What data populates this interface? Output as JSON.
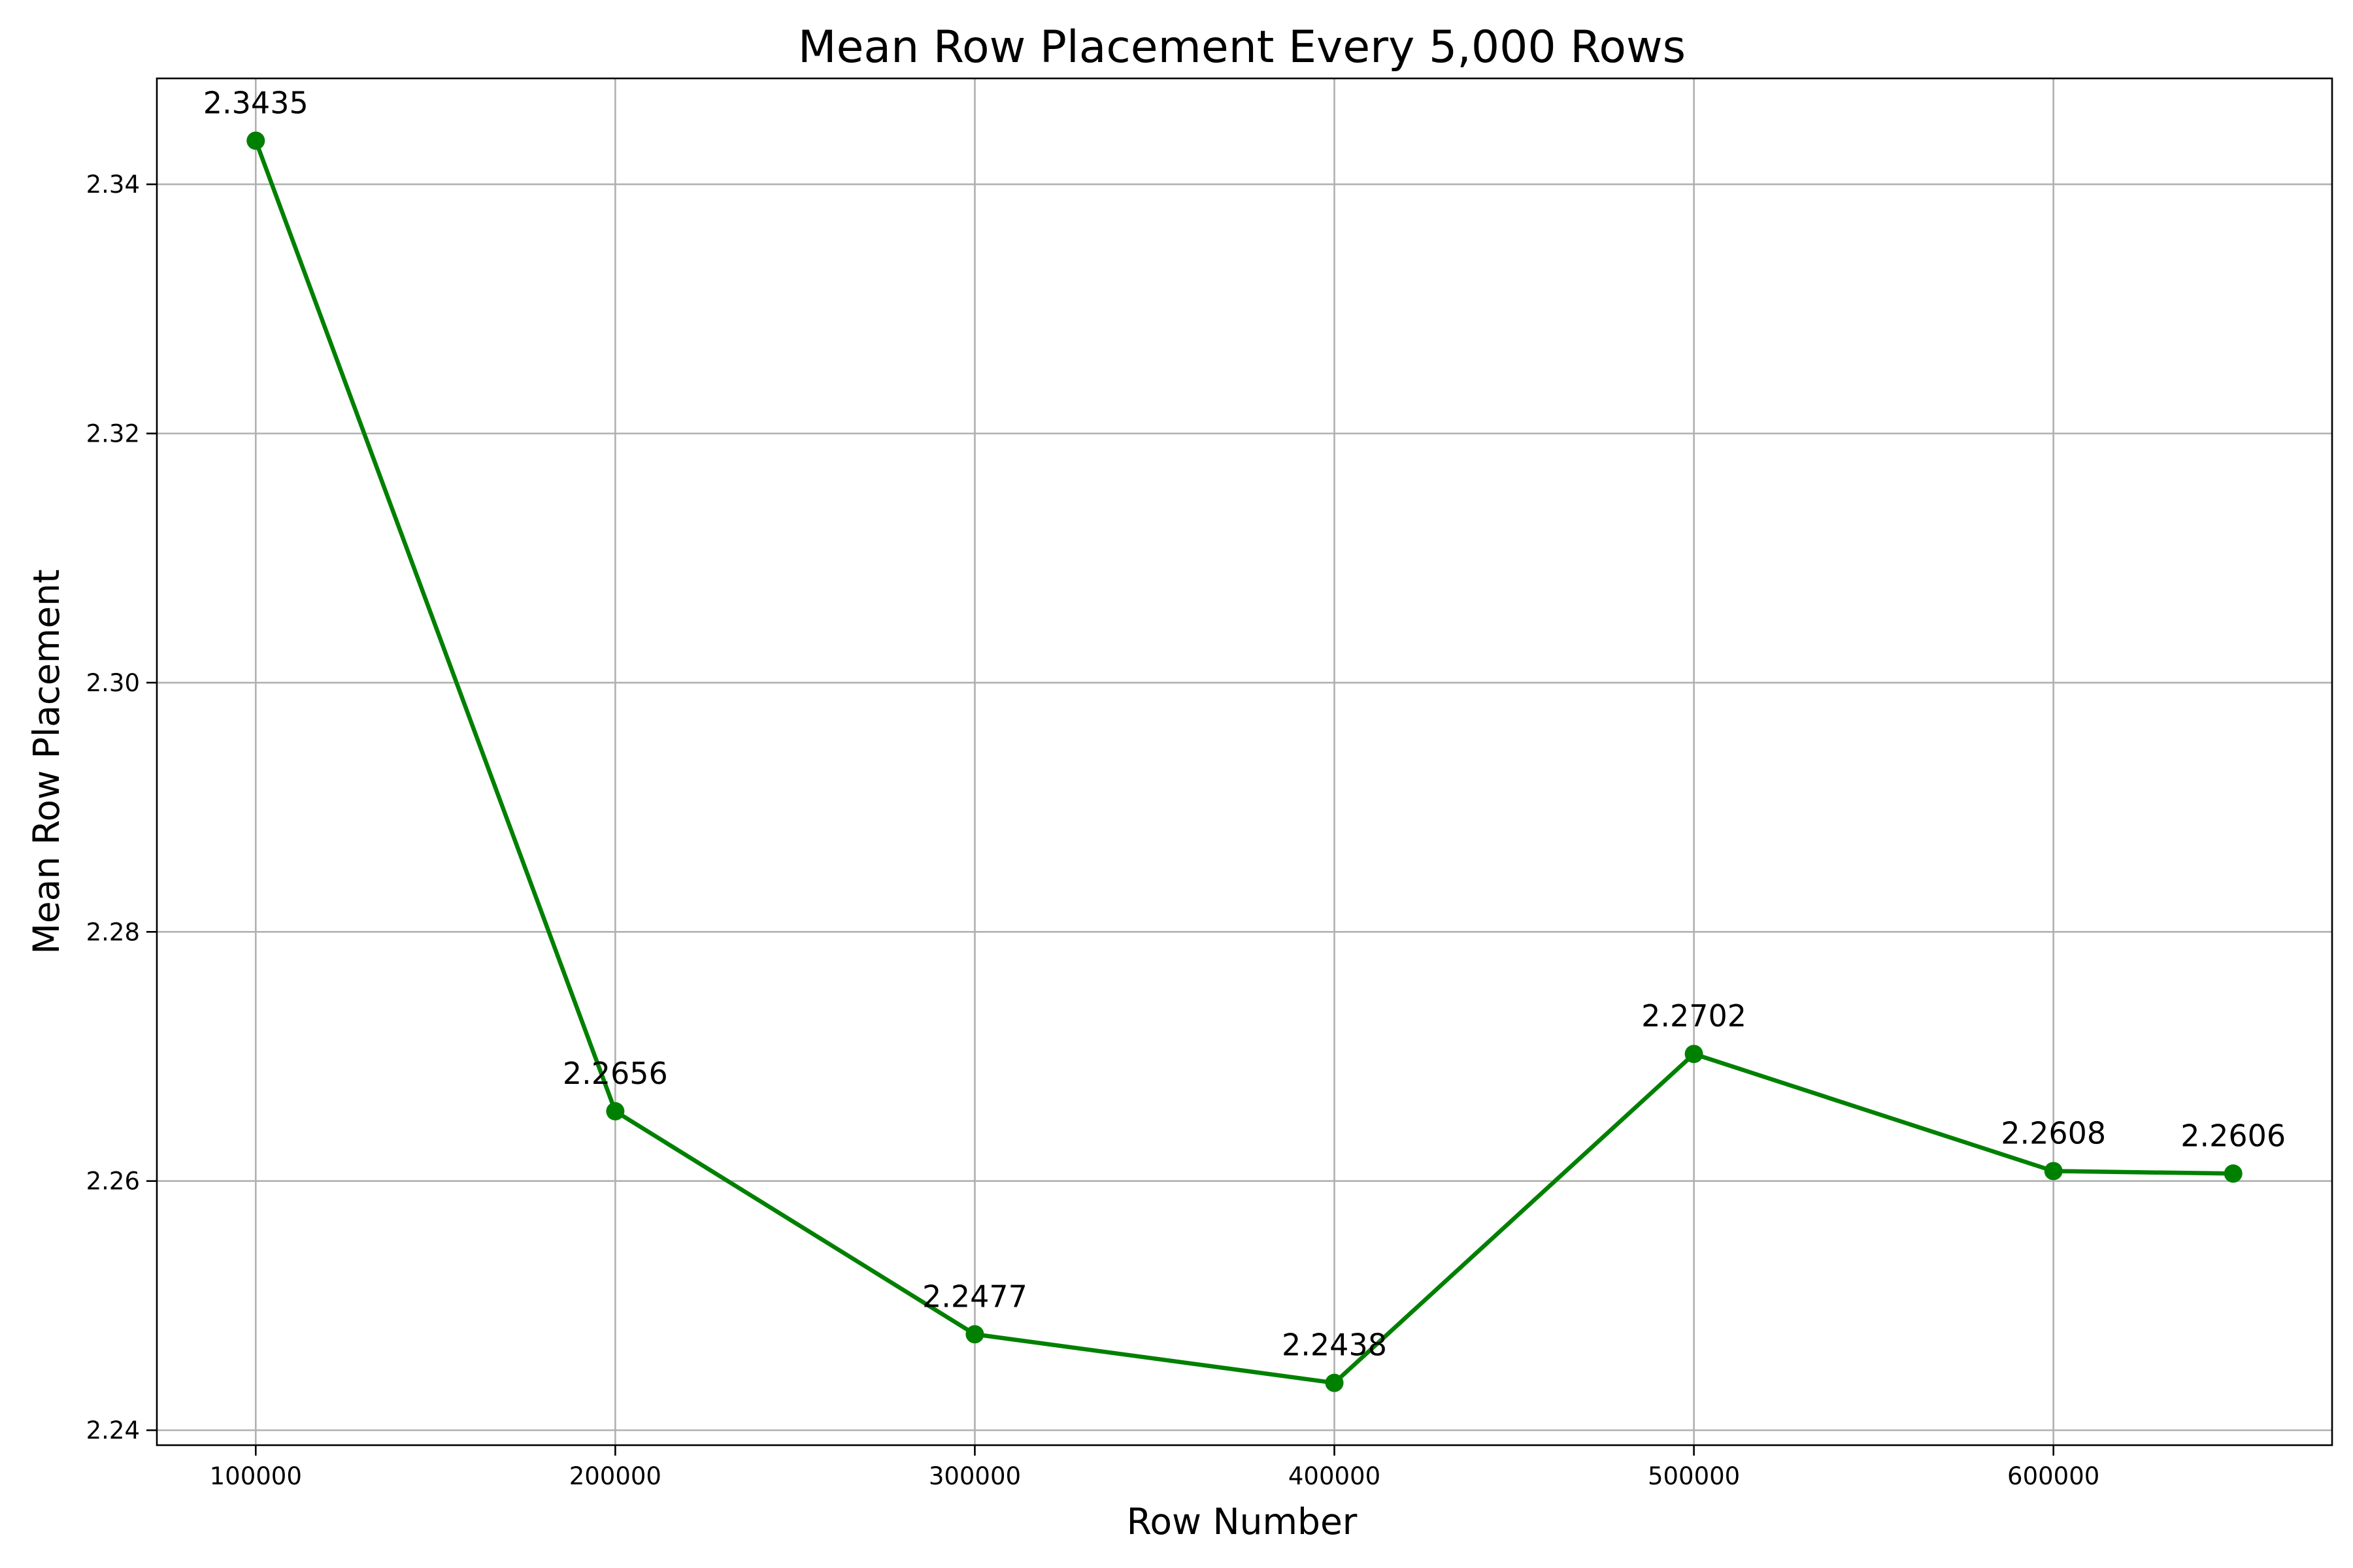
{
  "chart_data": {
    "type": "line",
    "title": "Mean Row Placement Every 5,000 Rows",
    "xlabel": "Row Number",
    "ylabel": "Mean Row Placement",
    "x": [
      100000,
      200000,
      300000,
      400000,
      500000,
      600000,
      650000
    ],
    "series": [
      {
        "values": [
          2.3435,
          2.2656,
          2.2477,
          2.2438,
          2.2702,
          2.2608,
          2.2606
        ],
        "color": "#008000",
        "marker": "circle"
      }
    ],
    "data_labels": [
      "2.3435",
      "2.2656",
      "2.2477",
      "2.2438",
      "2.2702",
      "2.2608",
      "2.2606"
    ],
    "x_ticks": [
      100000,
      200000,
      300000,
      400000,
      500000,
      600000
    ],
    "x_tick_labels": [
      "100000",
      "200000",
      "300000",
      "400000",
      "500000",
      "600000"
    ],
    "y_ticks": [
      2.24,
      2.26,
      2.28,
      2.3,
      2.32,
      2.34
    ],
    "y_tick_labels": [
      "2.24",
      "2.26",
      "2.28",
      "2.30",
      "2.32",
      "2.34"
    ],
    "xlim": [
      72500,
      677500
    ],
    "ylim": [
      2.2388,
      2.3485
    ],
    "grid": true,
    "legend": false
  }
}
